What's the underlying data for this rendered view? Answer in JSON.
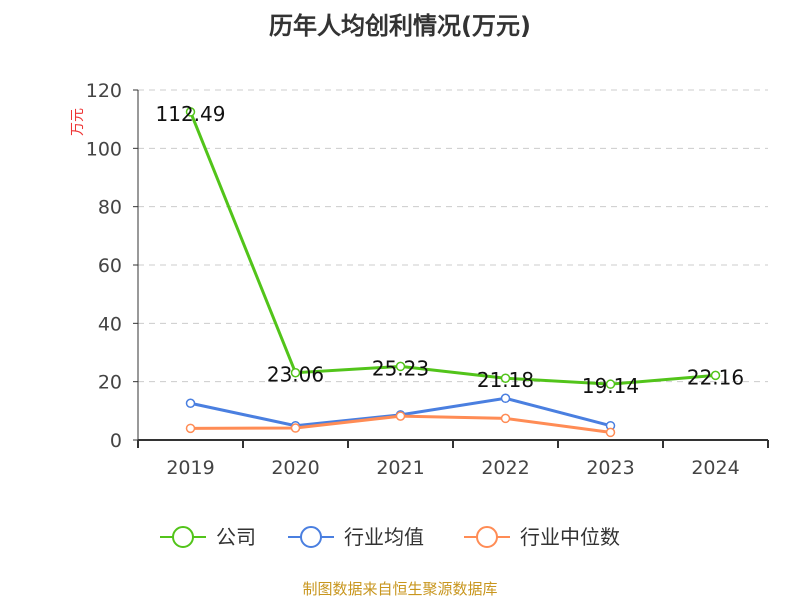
{
  "chart_data": {
    "type": "line",
    "title": "历年人均创利情况(万元)",
    "ylabel": "万元",
    "xlabel": "",
    "ylim": [
      0,
      120
    ],
    "yticks": [
      0,
      20,
      40,
      60,
      80,
      100,
      120
    ],
    "categories": [
      "2019",
      "2020",
      "2021",
      "2022",
      "2023",
      "2024"
    ],
    "grid": true,
    "legend_position": "bottom",
    "series": [
      {
        "name": "公司",
        "color": "#52c41a",
        "values": [
          112.49,
          23.06,
          25.23,
          21.18,
          19.14,
          22.16
        ],
        "labels": [
          "112.49",
          "23.06",
          "25.23",
          "21.18",
          "19.14",
          "22.16"
        ]
      },
      {
        "name": "行业均值",
        "color": "#4a7fe0",
        "values": [
          12.6,
          4.9,
          8.6,
          14.3,
          4.9,
          null
        ]
      },
      {
        "name": "行业中位数",
        "color": "#ff8c55",
        "values": [
          4.0,
          4.1,
          8.2,
          7.4,
          2.6,
          null
        ]
      }
    ]
  },
  "source": "制图数据来自恒生聚源数据库"
}
